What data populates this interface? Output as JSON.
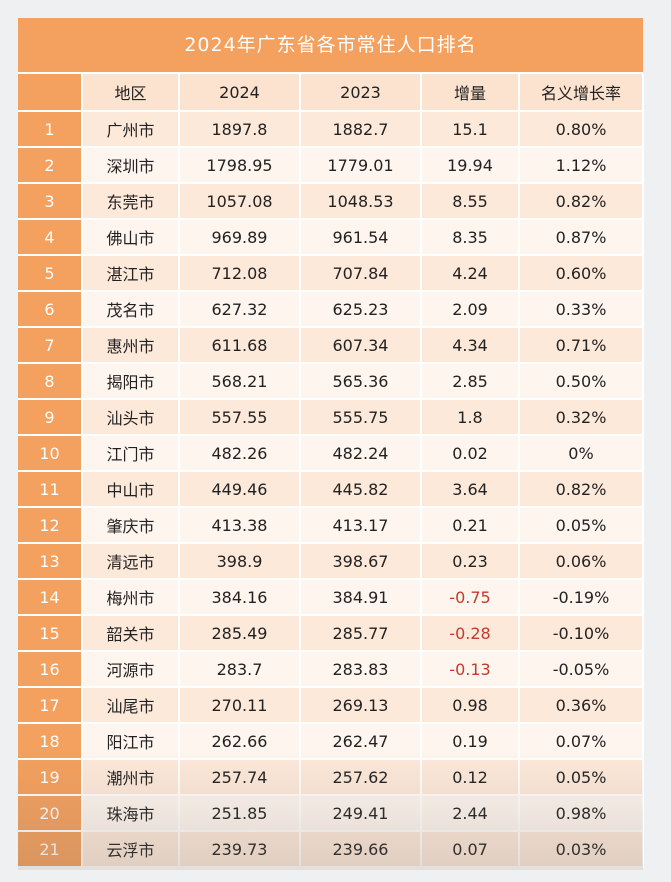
{
  "title": "2024年广东省各市常住人口排名",
  "headers": [
    "",
    "地区",
    "2024",
    "2023",
    "增量",
    "名义增长率"
  ],
  "colors": {
    "header_orange": "#f4a05e",
    "row_light": "#fde9da",
    "row_lighter": "#fef5ee",
    "negative": "#c23b2e"
  },
  "rows": [
    {
      "rank": "1",
      "city": "广州市",
      "y2024": "1897.8",
      "y2023": "1882.7",
      "delta": "15.1",
      "rate": "0.80%"
    },
    {
      "rank": "2",
      "city": "深圳市",
      "y2024": "1798.95",
      "y2023": "1779.01",
      "delta": "19.94",
      "rate": "1.12%"
    },
    {
      "rank": "3",
      "city": "东莞市",
      "y2024": "1057.08",
      "y2023": "1048.53",
      "delta": "8.55",
      "rate": "0.82%"
    },
    {
      "rank": "4",
      "city": "佛山市",
      "y2024": "969.89",
      "y2023": "961.54",
      "delta": "8.35",
      "rate": "0.87%"
    },
    {
      "rank": "5",
      "city": "湛江市",
      "y2024": "712.08",
      "y2023": "707.84",
      "delta": "4.24",
      "rate": "0.60%"
    },
    {
      "rank": "6",
      "city": "茂名市",
      "y2024": "627.32",
      "y2023": "625.23",
      "delta": "2.09",
      "rate": "0.33%"
    },
    {
      "rank": "7",
      "city": "惠州市",
      "y2024": "611.68",
      "y2023": "607.34",
      "delta": "4.34",
      "rate": "0.71%"
    },
    {
      "rank": "8",
      "city": "揭阳市",
      "y2024": "568.21",
      "y2023": "565.36",
      "delta": "2.85",
      "rate": "0.50%"
    },
    {
      "rank": "9",
      "city": "汕头市",
      "y2024": "557.55",
      "y2023": "555.75",
      "delta": "1.8",
      "rate": "0.32%"
    },
    {
      "rank": "10",
      "city": "江门市",
      "y2024": "482.26",
      "y2023": "482.24",
      "delta": "0.02",
      "rate": "0%"
    },
    {
      "rank": "11",
      "city": "中山市",
      "y2024": "449.46",
      "y2023": "445.82",
      "delta": "3.64",
      "rate": "0.82%"
    },
    {
      "rank": "12",
      "city": "肇庆市",
      "y2024": "413.38",
      "y2023": "413.17",
      "delta": "0.21",
      "rate": "0.05%"
    },
    {
      "rank": "13",
      "city": "清远市",
      "y2024": "398.9",
      "y2023": "398.67",
      "delta": "0.23",
      "rate": "0.06%"
    },
    {
      "rank": "14",
      "city": "梅州市",
      "y2024": "384.16",
      "y2023": "384.91",
      "delta": "-0.75",
      "rate": "-0.19%",
      "negative": true
    },
    {
      "rank": "15",
      "city": "韶关市",
      "y2024": "285.49",
      "y2023": "285.77",
      "delta": "-0.28",
      "rate": "-0.10%",
      "negative": true
    },
    {
      "rank": "16",
      "city": "河源市",
      "y2024": "283.7",
      "y2023": "283.83",
      "delta": "-0.13",
      "rate": "-0.05%",
      "negative": true
    },
    {
      "rank": "17",
      "city": "汕尾市",
      "y2024": "270.11",
      "y2023": "269.13",
      "delta": "0.98",
      "rate": "0.36%"
    },
    {
      "rank": "18",
      "city": "阳江市",
      "y2024": "262.66",
      "y2023": "262.47",
      "delta": "0.19",
      "rate": "0.07%"
    },
    {
      "rank": "19",
      "city": "潮州市",
      "y2024": "257.74",
      "y2023": "257.62",
      "delta": "0.12",
      "rate": "0.05%"
    },
    {
      "rank": "20",
      "city": "珠海市",
      "y2024": "251.85",
      "y2023": "249.41",
      "delta": "2.44",
      "rate": "0.98%"
    },
    {
      "rank": "21",
      "city": "云浮市",
      "y2024": "239.73",
      "y2023": "239.66",
      "delta": "0.07",
      "rate": "0.03%"
    }
  ]
}
